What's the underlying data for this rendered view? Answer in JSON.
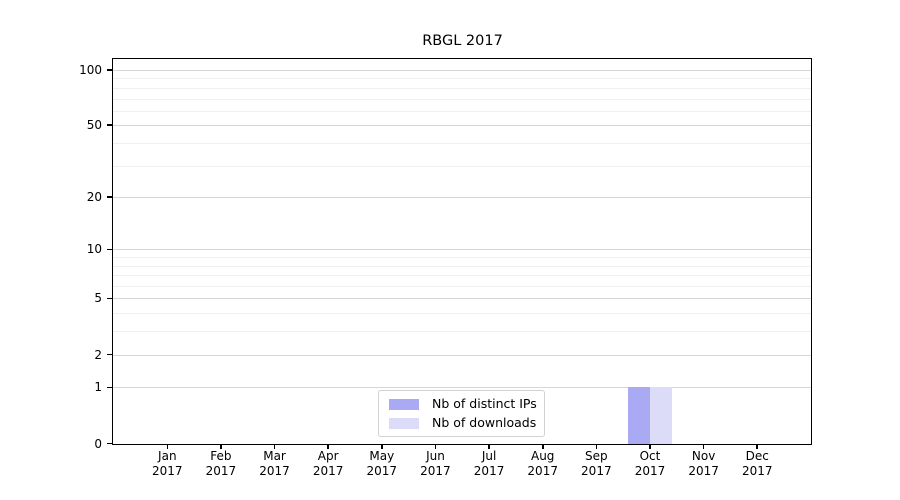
{
  "chart_data": {
    "type": "bar",
    "title": "RBGL 2017",
    "categories": [
      "Jan",
      "Feb",
      "Mar",
      "Apr",
      "May",
      "Jun",
      "Jul",
      "Aug",
      "Sep",
      "Oct",
      "Nov",
      "Dec"
    ],
    "category_year": "2017",
    "series": [
      {
        "name": "Nb of distinct IPs",
        "color": "#aaaaf4",
        "values": [
          0,
          0,
          0,
          0,
          0,
          0,
          0,
          0,
          0,
          1,
          0,
          0
        ]
      },
      {
        "name": "Nb of downloads",
        "color": "#dcdcf8",
        "values": [
          0,
          0,
          0,
          0,
          0,
          0,
          0,
          0,
          0,
          1,
          0,
          0
        ]
      }
    ],
    "y_scale": "log1p",
    "y_ticks": [
      0,
      1,
      2,
      5,
      10,
      20,
      50,
      100
    ],
    "y_minor_gridlines": [
      3,
      4,
      6,
      7,
      8,
      9,
      30,
      40,
      60,
      70,
      80,
      90
    ],
    "ylim": [
      0,
      115
    ],
    "grid": "on",
    "legend_position": "bottom-center",
    "colors": {
      "major_grid": "#d6d6d6",
      "minor_grid": "#efefef",
      "spine": "#000000",
      "text": "#000000",
      "background": "#ffffff"
    }
  }
}
